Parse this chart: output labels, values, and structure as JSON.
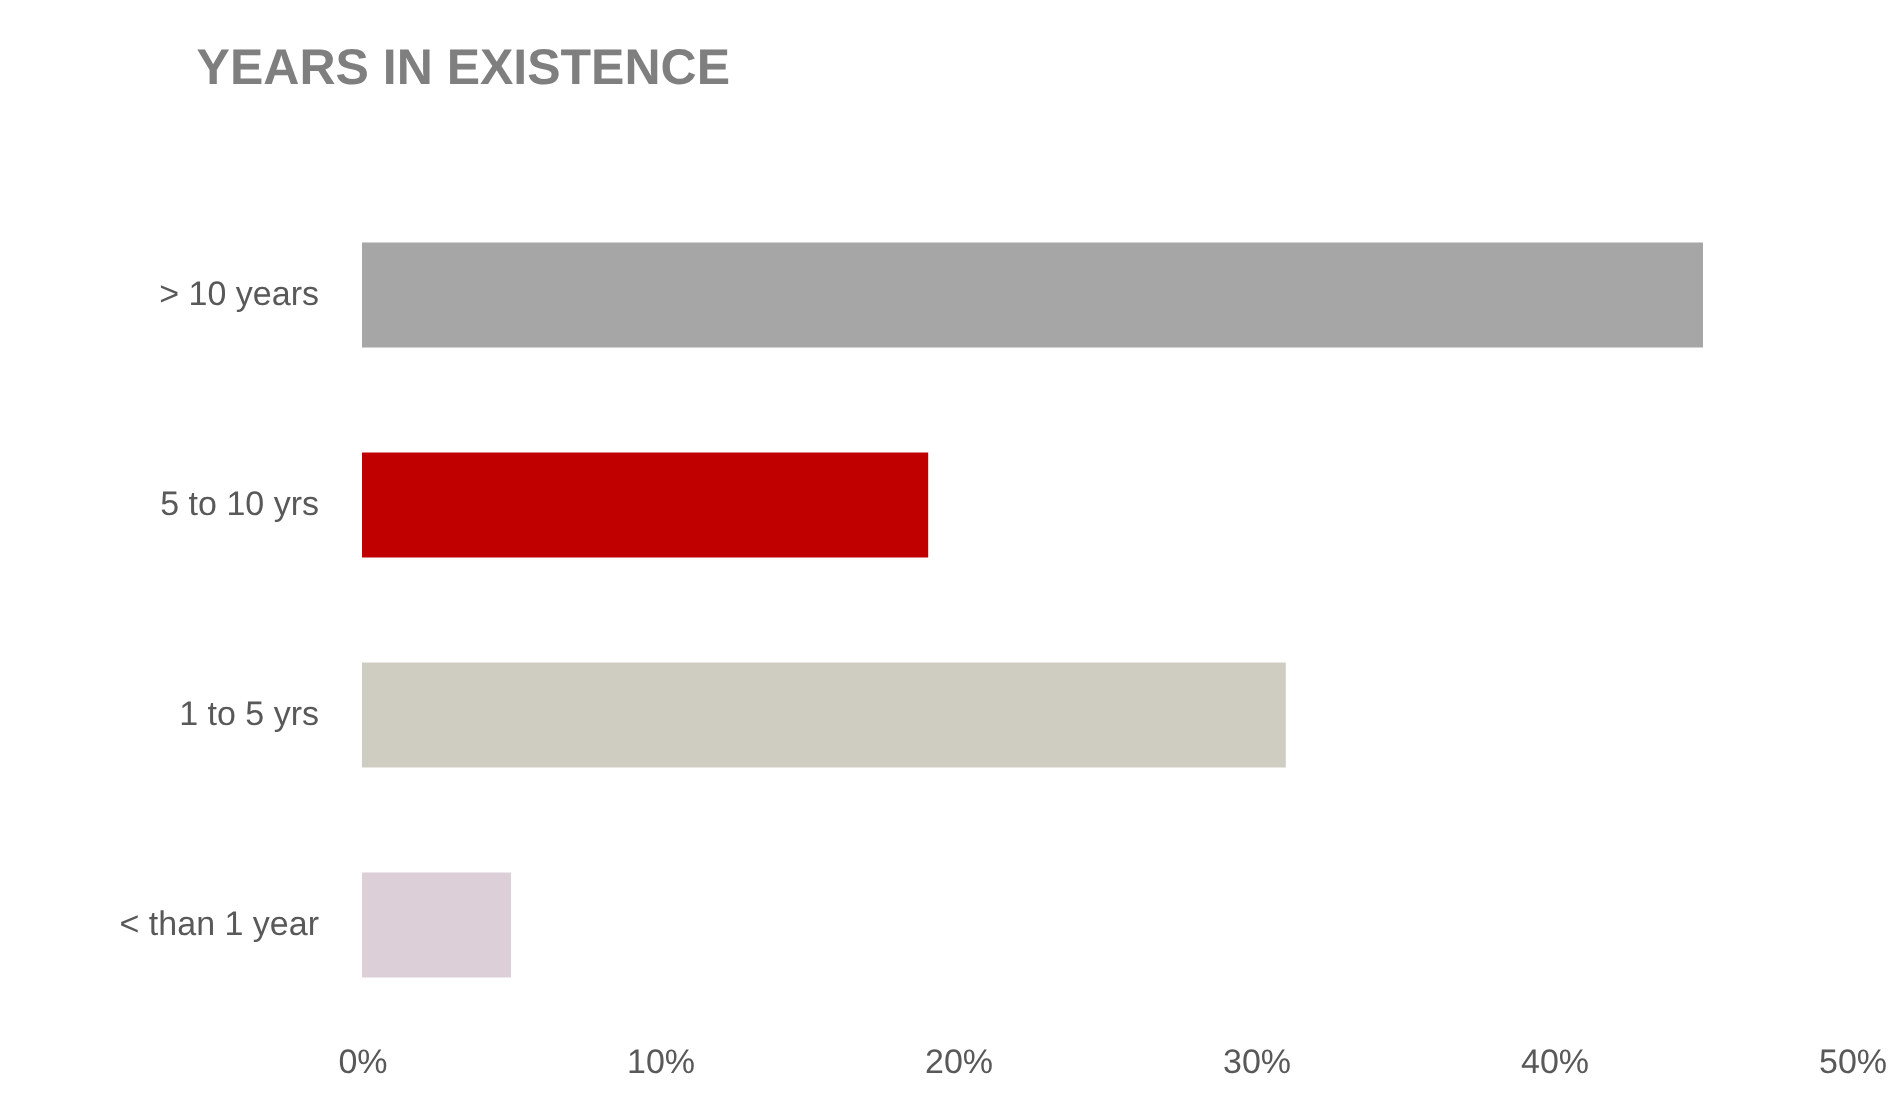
{
  "chart_data": {
    "type": "bar",
    "orientation": "horizontal",
    "title": "YEARS IN EXISTENCE",
    "categories": [
      "> 10 years",
      "5 to 10 yrs",
      "1 to 5 yrs",
      "< than 1 year"
    ],
    "values": [
      45,
      19,
      31,
      5
    ],
    "colors": [
      "#a6a6a6",
      "#c00000",
      "#cfcdc2",
      "#dccfd8"
    ],
    "xlim": [
      0,
      50
    ],
    "xticks": [
      {
        "value": 0,
        "label": "0%"
      },
      {
        "value": 10,
        "label": "10%"
      },
      {
        "value": 20,
        "label": "20%"
      },
      {
        "value": 30,
        "label": "30%"
      },
      {
        "value": 40,
        "label": "40%"
      },
      {
        "value": 50,
        "label": "50%"
      }
    ],
    "grid": false
  }
}
